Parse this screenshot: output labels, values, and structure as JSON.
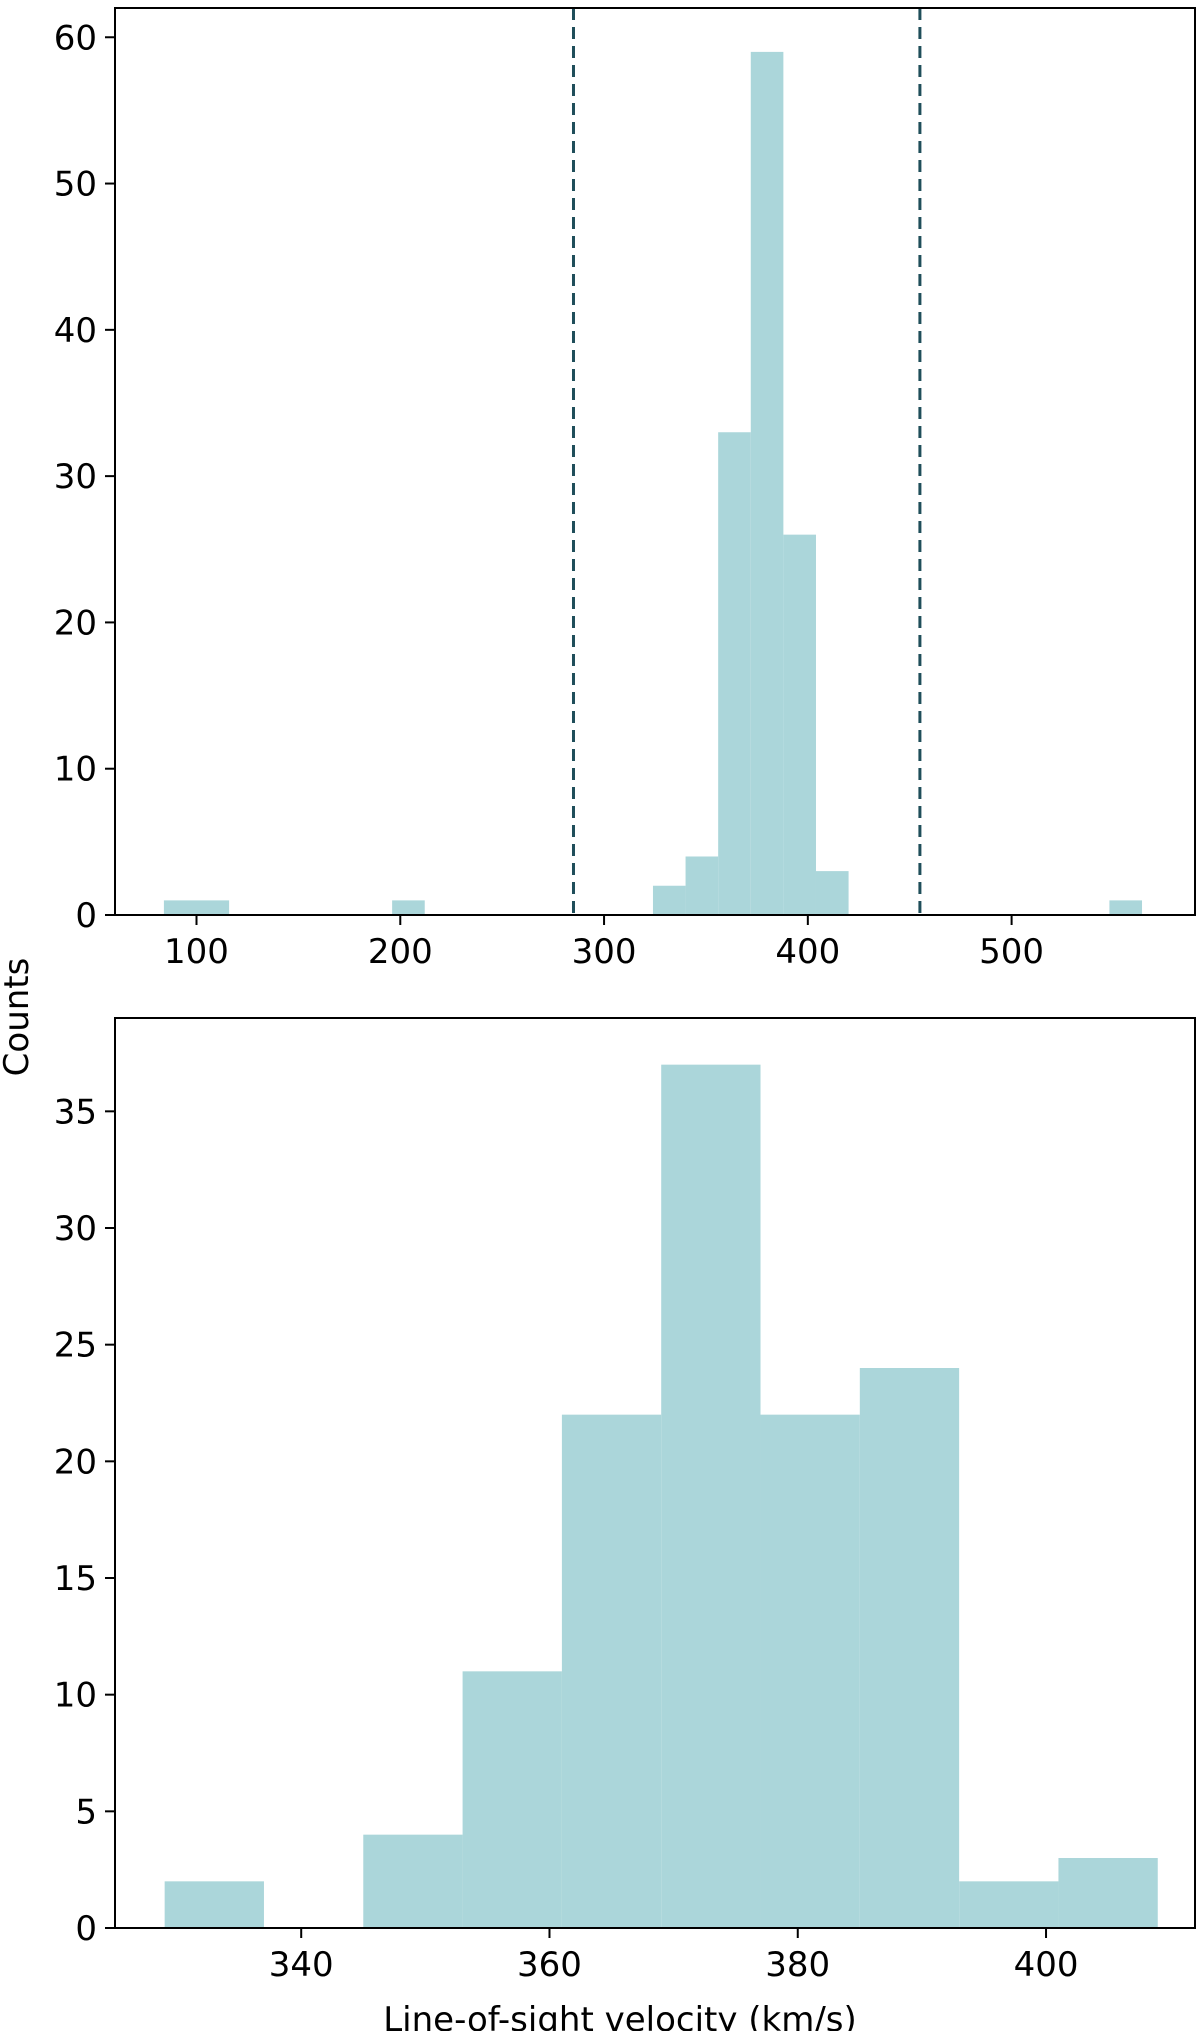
{
  "figure": {
    "ylabel": "Counts",
    "xlabel": "Line-of-sight velocity (km/s)"
  },
  "colors": {
    "bar": "#abd6da",
    "vline": "#1f4e5a",
    "axis": "#000000"
  },
  "chart_data": [
    {
      "type": "bar",
      "panel": "top",
      "title": "",
      "xlabel": "",
      "ylabel": "Counts",
      "xlim": [
        60,
        590
      ],
      "ylim": [
        0,
        62
      ],
      "xticks": [
        100,
        200,
        300,
        400,
        500
      ],
      "yticks": [
        0,
        10,
        20,
        30,
        40,
        50,
        60
      ],
      "bins": [
        {
          "x0": 84,
          "x1": 116,
          "count": 1
        },
        {
          "x0": 196,
          "x1": 212,
          "count": 1
        },
        {
          "x0": 324,
          "x1": 340,
          "count": 2
        },
        {
          "x0": 340,
          "x1": 356,
          "count": 4
        },
        {
          "x0": 356,
          "x1": 372,
          "count": 33
        },
        {
          "x0": 372,
          "x1": 388,
          "count": 59
        },
        {
          "x0": 388,
          "x1": 404,
          "count": 26
        },
        {
          "x0": 404,
          "x1": 420,
          "count": 3
        },
        {
          "x0": 548,
          "x1": 564,
          "count": 1
        }
      ],
      "vlines": [
        285,
        455
      ],
      "grid": false
    },
    {
      "type": "bar",
      "panel": "bottom",
      "title": "",
      "xlabel": "Line-of-sight velocity (km/s)",
      "ylabel": "Counts",
      "xlim": [
        325,
        412
      ],
      "ylim": [
        0,
        39
      ],
      "xticks": [
        340,
        360,
        380,
        400
      ],
      "yticks": [
        0,
        5,
        10,
        15,
        20,
        25,
        30,
        35
      ],
      "bins": [
        {
          "x0": 329,
          "x1": 337,
          "count": 2
        },
        {
          "x0": 337,
          "x1": 345,
          "count": 0
        },
        {
          "x0": 345,
          "x1": 353,
          "count": 4
        },
        {
          "x0": 353,
          "x1": 361,
          "count": 11
        },
        {
          "x0": 361,
          "x1": 369,
          "count": 22
        },
        {
          "x0": 369,
          "x1": 377,
          "count": 37
        },
        {
          "x0": 377,
          "x1": 385,
          "count": 22
        },
        {
          "x0": 385,
          "x1": 393,
          "count": 24
        },
        {
          "x0": 393,
          "x1": 401,
          "count": 2
        },
        {
          "x0": 401,
          "x1": 409,
          "count": 3
        }
      ],
      "vlines": [],
      "grid": false
    }
  ]
}
